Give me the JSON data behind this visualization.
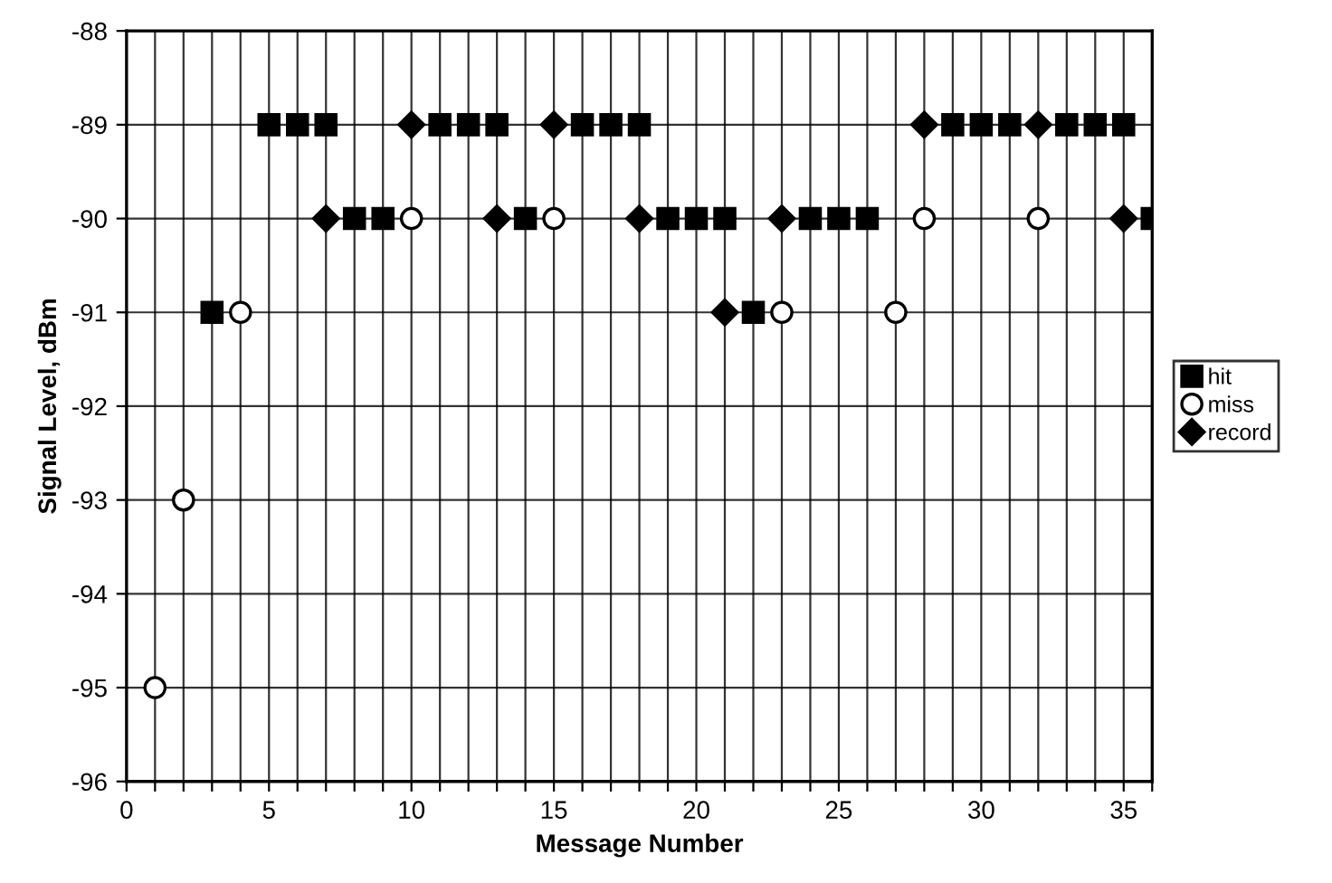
{
  "chart_data": {
    "type": "scatter",
    "xlabel": "Message Number",
    "ylabel": "Signal Level, dBm",
    "xlim": [
      0,
      36
    ],
    "ylim": [
      -96,
      -88
    ],
    "xticks": [
      0,
      {
        "value": 1,
        "label": null
      },
      {
        "value": 2,
        "label": null
      },
      {
        "value": 3,
        "label": null
      },
      {
        "value": 4,
        "label": null
      },
      5,
      {
        "value": 6,
        "label": null
      },
      {
        "value": 7,
        "label": null
      },
      {
        "value": 8,
        "label": null
      },
      {
        "value": 9,
        "label": null
      },
      10,
      {
        "value": 11,
        "label": null
      },
      {
        "value": 12,
        "label": null
      },
      {
        "value": 13,
        "label": null
      },
      {
        "value": 14,
        "label": null
      },
      15,
      {
        "value": 16,
        "label": null
      },
      {
        "value": 17,
        "label": null
      },
      {
        "value": 18,
        "label": null
      },
      {
        "value": 19,
        "label": null
      },
      20,
      {
        "value": 21,
        "label": null
      },
      {
        "value": 22,
        "label": null
      },
      {
        "value": 23,
        "label": null
      },
      {
        "value": 24,
        "label": null
      },
      25,
      {
        "value": 26,
        "label": null
      },
      {
        "value": 27,
        "label": null
      },
      {
        "value": 28,
        "label": null
      },
      {
        "value": 29,
        "label": null
      },
      30,
      {
        "value": 31,
        "label": null
      },
      {
        "value": 32,
        "label": null
      },
      {
        "value": 33,
        "label": null
      },
      {
        "value": 34,
        "label": null
      },
      35,
      {
        "value": 36,
        "label": null
      }
    ],
    "yticks": [
      -96,
      -95,
      -94,
      -93,
      -92,
      -91,
      -90,
      -89,
      -88
    ],
    "grid": true,
    "legend": "right",
    "series": [
      {
        "name": "hit",
        "color": "#000000",
        "marker": "square",
        "x": [
          3,
          5,
          6,
          7,
          8,
          9,
          11,
          12,
          13,
          14,
          16,
          17,
          18,
          19,
          20,
          21,
          22,
          24,
          25,
          26,
          29,
          30,
          31,
          33,
          34,
          35,
          36
        ],
        "values": [
          -91,
          -89,
          -89,
          -89,
          -90,
          -90,
          -89,
          -89,
          -89,
          -90,
          -89,
          -89,
          -89,
          -90,
          -90,
          -90,
          -91,
          -90,
          -90,
          -90,
          -89,
          -89,
          -89,
          -89,
          -89,
          -89,
          -90
        ]
      },
      {
        "name": "miss",
        "color": "#ffffff",
        "marker": "circle",
        "x": [
          1,
          2,
          4,
          10,
          15,
          23,
          27,
          28,
          32
        ],
        "values": [
          -95,
          -93,
          -91,
          -90,
          -90,
          -91,
          -91,
          -90,
          -90
        ]
      },
      {
        "name": "record",
        "color": "#000000",
        "marker": "diamond",
        "x": [
          7,
          10,
          13,
          15,
          18,
          21,
          23,
          28,
          32,
          35
        ],
        "values": [
          -90,
          -89,
          -90,
          -89,
          -90,
          -91,
          -90,
          -89,
          -89,
          -90
        ]
      }
    ]
  }
}
